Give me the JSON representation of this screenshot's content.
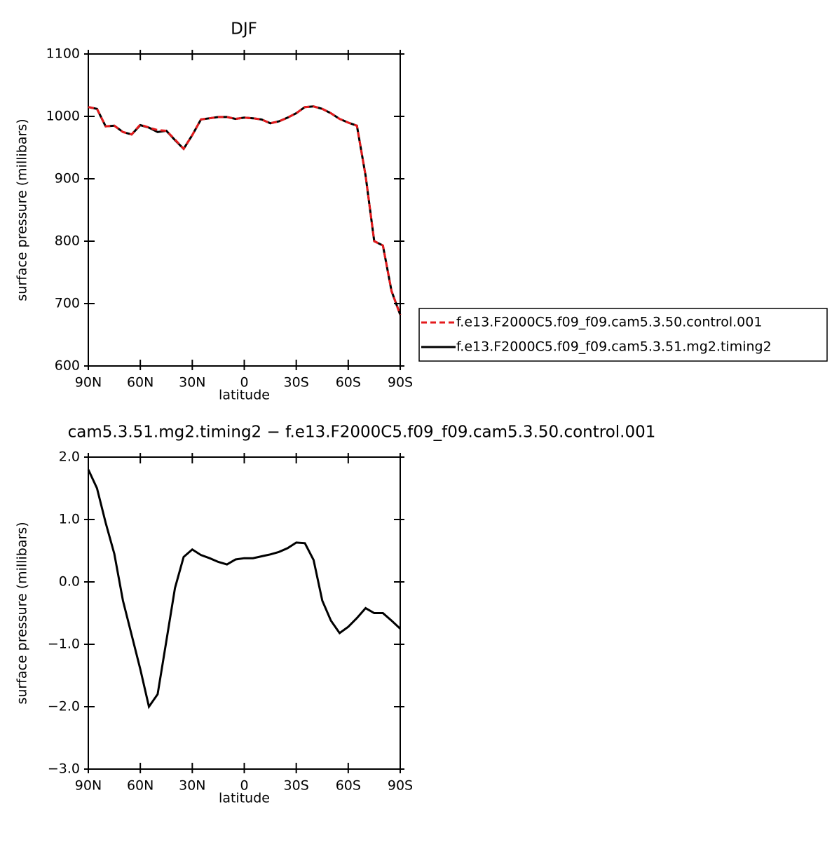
{
  "chart_data": [
    {
      "type": "line",
      "title": "DJF",
      "x_label": "latitude",
      "y_label": "surface pressure (millibars)",
      "x": [
        90,
        85,
        80,
        75,
        70,
        65,
        60,
        55,
        50,
        45,
        40,
        35,
        30,
        25,
        20,
        15,
        10,
        5,
        0,
        -5,
        -10,
        -15,
        -20,
        -25,
        -30,
        -35,
        -40,
        -45,
        -50,
        -55,
        -60,
        -65,
        -70,
        -75,
        -80,
        -85,
        -90
      ],
      "series": [
        {
          "name": "f.e13.F2000C5.f09_f09.cam5.3.50.control.001",
          "color": "#e41a1c",
          "dash": "dashed",
          "values": [
            1015,
            1012,
            984,
            985,
            975,
            971,
            987,
            982,
            978,
            977,
            963,
            948,
            970,
            995,
            997,
            999,
            999,
            996,
            998,
            997,
            995,
            989,
            992,
            998,
            1005,
            1015,
            1016,
            1012,
            1005,
            996,
            990,
            985,
            905,
            800,
            793,
            720,
            682
          ]
        },
        {
          "name": "f.e13.F2000C5.f09_f09.cam5.3.51.mg2.timing2",
          "color": "#000000",
          "dash": "solid",
          "values": [
            1015,
            1012,
            984,
            985,
            975,
            971,
            986,
            982,
            975,
            977,
            962,
            948,
            970,
            995,
            997,
            999,
            999,
            996,
            998,
            997,
            995,
            989,
            992,
            998,
            1005,
            1015,
            1016,
            1012,
            1005,
            996,
            990,
            985,
            905,
            800,
            793,
            720,
            682
          ]
        }
      ],
      "xlim": [
        90,
        -90
      ],
      "xticks": [
        {
          "value": 90,
          "label": "90N"
        },
        {
          "value": 60,
          "label": "60N"
        },
        {
          "value": 30,
          "label": "30N"
        },
        0,
        {
          "value": -30,
          "label": "30S"
        },
        {
          "value": -60,
          "label": "60S"
        },
        {
          "value": -90,
          "label": "90S"
        }
      ],
      "ylim": [
        600,
        1100
      ],
      "yticks": [
        600,
        700,
        800,
        900,
        1000,
        1100
      ],
      "legend": "right"
    },
    {
      "type": "line",
      "title": "cam5.3.51.mg2.timing2 − f.e13.F2000C5.f09_f09.cam5.3.50.control.001",
      "x_label": "latitude",
      "y_label": "surface pressure (millibars)",
      "x": [
        90,
        85,
        80,
        75,
        70,
        65,
        60,
        55,
        50,
        45,
        40,
        35,
        30,
        25,
        20,
        15,
        10,
        5,
        0,
        -5,
        -10,
        -15,
        -20,
        -25,
        -30,
        -35,
        -40,
        -45,
        -50,
        -55,
        -60,
        -65,
        -70,
        -75,
        -80,
        -85,
        -90
      ],
      "series": [
        {
          "color": "#000000",
          "dash": "solid",
          "values": [
            1.8,
            1.5,
            0.95,
            0.45,
            -0.3,
            -0.85,
            -1.4,
            -2.0,
            -1.8,
            -0.95,
            -0.1,
            0.4,
            0.52,
            0.43,
            0.38,
            0.32,
            0.28,
            0.36,
            0.38,
            0.38,
            0.41,
            0.44,
            0.48,
            0.54,
            0.63,
            0.62,
            0.35,
            -0.3,
            -0.62,
            -0.82,
            -0.72,
            -0.58,
            -0.42,
            -0.5,
            -0.5,
            -0.62,
            -0.75
          ]
        }
      ],
      "xlim": [
        90,
        -90
      ],
      "xticks": [
        {
          "value": 90,
          "label": "90N"
        },
        {
          "value": 60,
          "label": "60N"
        },
        {
          "value": 30,
          "label": "30N"
        },
        0,
        {
          "value": -30,
          "label": "30S"
        },
        {
          "value": -60,
          "label": "60S"
        },
        {
          "value": -90,
          "label": "90S"
        }
      ],
      "ylim": [
        -3,
        2
      ],
      "yticks": [
        {
          "value": -3,
          "label": "−3.0"
        },
        {
          "value": -2,
          "label": "−2.0"
        },
        {
          "value": -1,
          "label": "−1.0"
        },
        {
          "value": 0,
          "label": "0.0"
        },
        {
          "value": 1,
          "label": "1.0"
        },
        {
          "value": 2,
          "label": "2.0"
        }
      ]
    }
  ]
}
